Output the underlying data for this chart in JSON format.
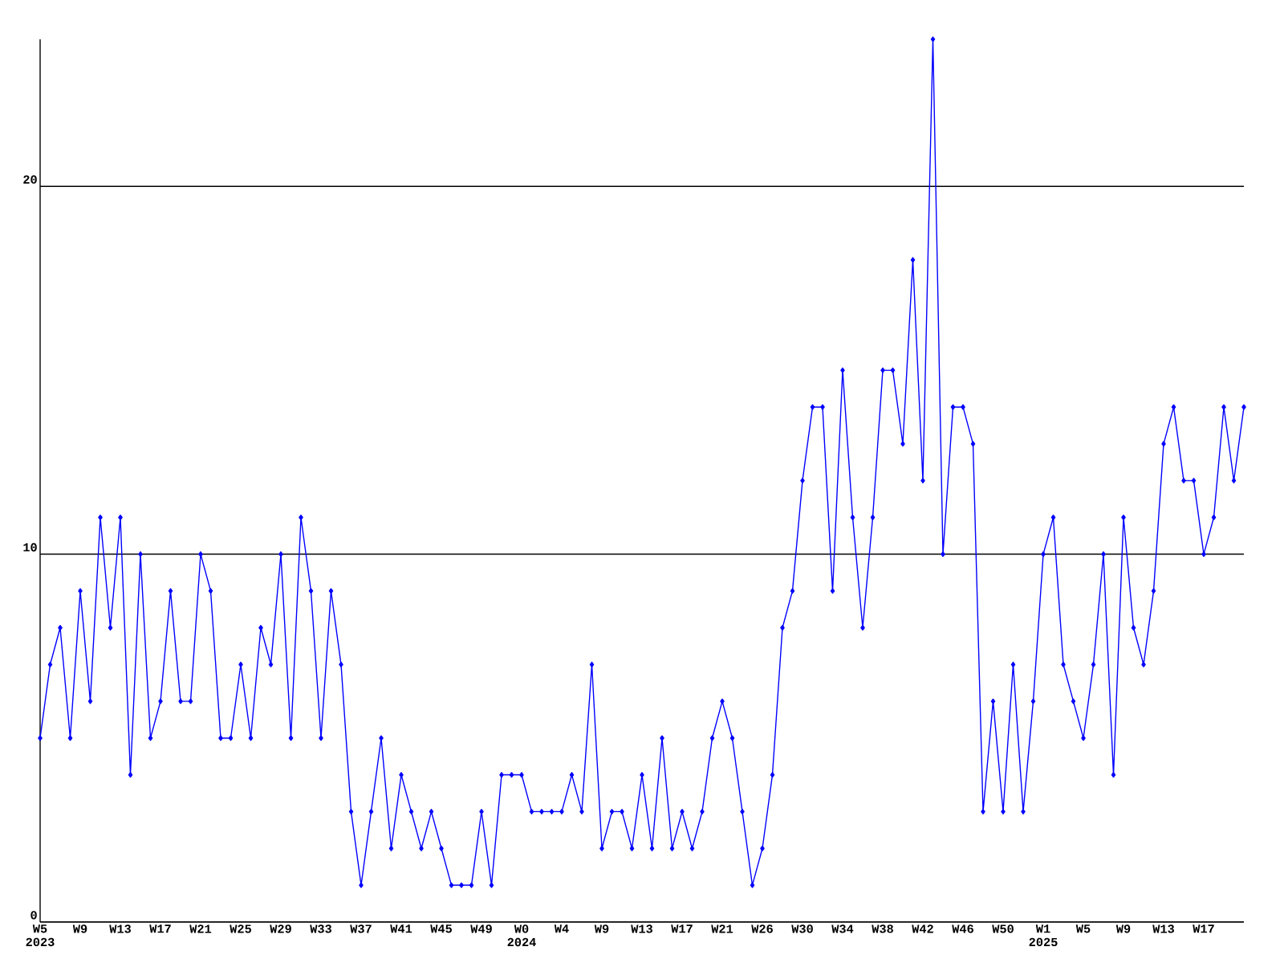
{
  "chart_data": {
    "type": "line",
    "categories": [
      "W5 2023",
      null,
      null,
      null,
      "W9",
      null,
      null,
      null,
      "W13",
      null,
      null,
      null,
      "W17",
      null,
      null,
      null,
      "W21",
      null,
      null,
      null,
      "W25",
      null,
      null,
      null,
      "W29",
      null,
      null,
      null,
      "W33",
      null,
      null,
      null,
      "W37",
      null,
      null,
      null,
      "W41",
      null,
      null,
      null,
      "W45",
      null,
      null,
      null,
      "W49",
      null,
      null,
      null,
      "W0 2024",
      null,
      null,
      null,
      "W4",
      null,
      null,
      null,
      "W9",
      null,
      null,
      null,
      "W13",
      null,
      null,
      null,
      "W17",
      null,
      null,
      null,
      "W21",
      null,
      null,
      null,
      "W26",
      null,
      null,
      null,
      "W30",
      null,
      null,
      null,
      "W34",
      null,
      null,
      null,
      "W38",
      null,
      null,
      null,
      "W42",
      null,
      null,
      null,
      "W46",
      null,
      null,
      null,
      "W50",
      null,
      null,
      null,
      "W1 2025",
      null,
      null,
      null,
      "W5",
      null,
      null,
      null,
      "W9",
      null,
      null,
      null,
      "W13",
      null,
      null,
      null,
      "W17",
      null,
      null,
      null,
      null
    ],
    "values": [
      5,
      7,
      8,
      5,
      9,
      6,
      11,
      8,
      11,
      4,
      10,
      5,
      6,
      9,
      6,
      6,
      10,
      9,
      5,
      5,
      7,
      5,
      8,
      7,
      10,
      5,
      11,
      9,
      5,
      9,
      7,
      3,
      1,
      3,
      5,
      2,
      4,
      3,
      2,
      3,
      2,
      1,
      1,
      1,
      3,
      1,
      4,
      4,
      4,
      3,
      3,
      3,
      3,
      4,
      3,
      7,
      2,
      3,
      3,
      2,
      4,
      2,
      5,
      2,
      3,
      2,
      3,
      5,
      6,
      5,
      3,
      1,
      2,
      4,
      8,
      9,
      12,
      14,
      14,
      9,
      15,
      11,
      8,
      11,
      15,
      15,
      13,
      18,
      12,
      24,
      10,
      14,
      14,
      13,
      3,
      6,
      3,
      7,
      3,
      6,
      10,
      11,
      7,
      6,
      5,
      7,
      10,
      4,
      11,
      8,
      7,
      9,
      13,
      14,
      12,
      12,
      10,
      11,
      14,
      12,
      14
    ],
    "color": "#0000ff",
    "marker": "diamond",
    "grid": "y",
    "ylim": [
      0,
      24
    ],
    "yticks": [
      0,
      10,
      20
    ]
  }
}
